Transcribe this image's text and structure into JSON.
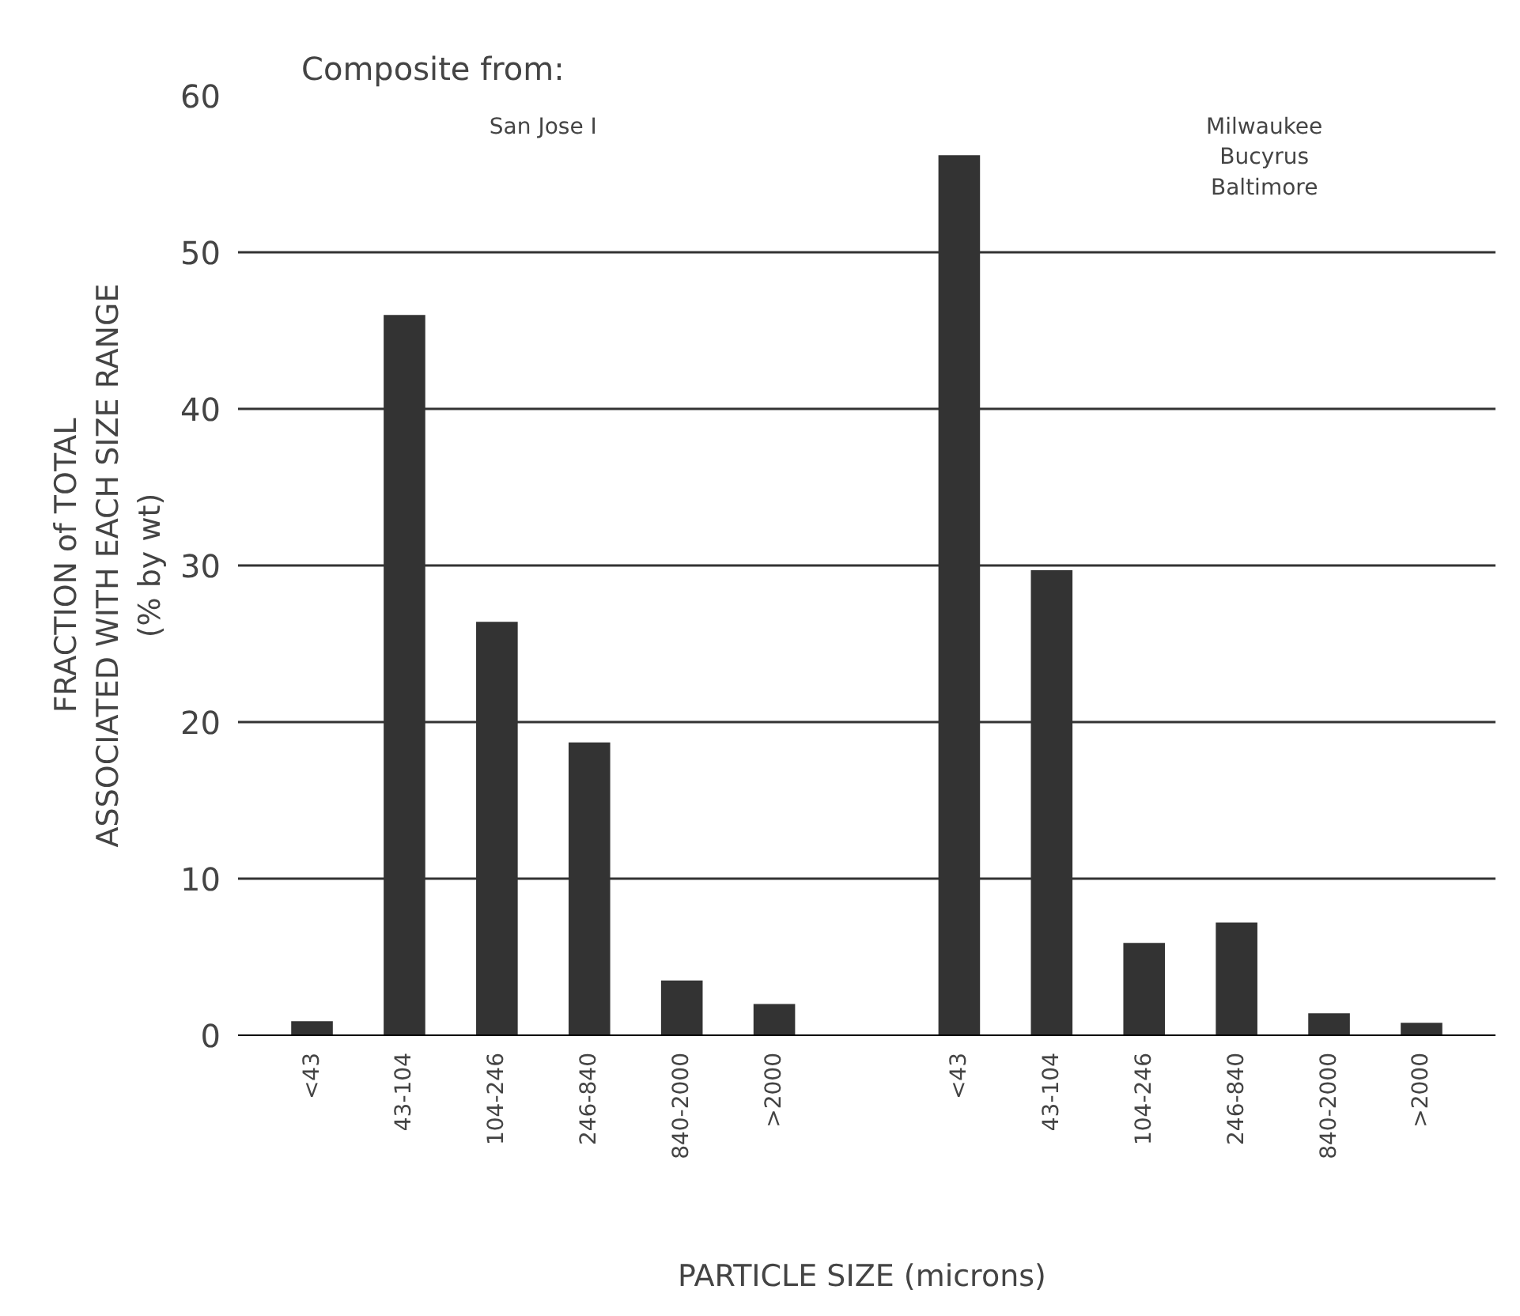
{
  "chart_data": {
    "type": "bar",
    "title": "Composite from:",
    "categories": [
      "<43",
      "43-104",
      "104-246",
      "246-840",
      "840-2000",
      ">2000",
      null,
      "<43",
      "43-104",
      "104-246",
      "246-840",
      "840-2000",
      ">2000"
    ],
    "values": [
      0.9,
      46,
      26.4,
      18.7,
      3.5,
      2.0,
      null,
      56.2,
      29.7,
      5.9,
      7.2,
      1.4,
      0.8
    ],
    "color": "#333333",
    "ylim": [
      0,
      60
    ],
    "yticks": [
      0,
      10,
      20,
      30,
      40,
      50,
      60
    ],
    "grid": "y",
    "xlabel": "PARTICLE SIZE  (microns)",
    "ylabel": "FRACTION of TOTAL\nASSOCIATED WITH EACH SIZE RANGE\n(% by wt)",
    "annotations": [
      "San Jose I",
      "Milwaukee\nBucyrus\nBaltimore"
    ]
  }
}
